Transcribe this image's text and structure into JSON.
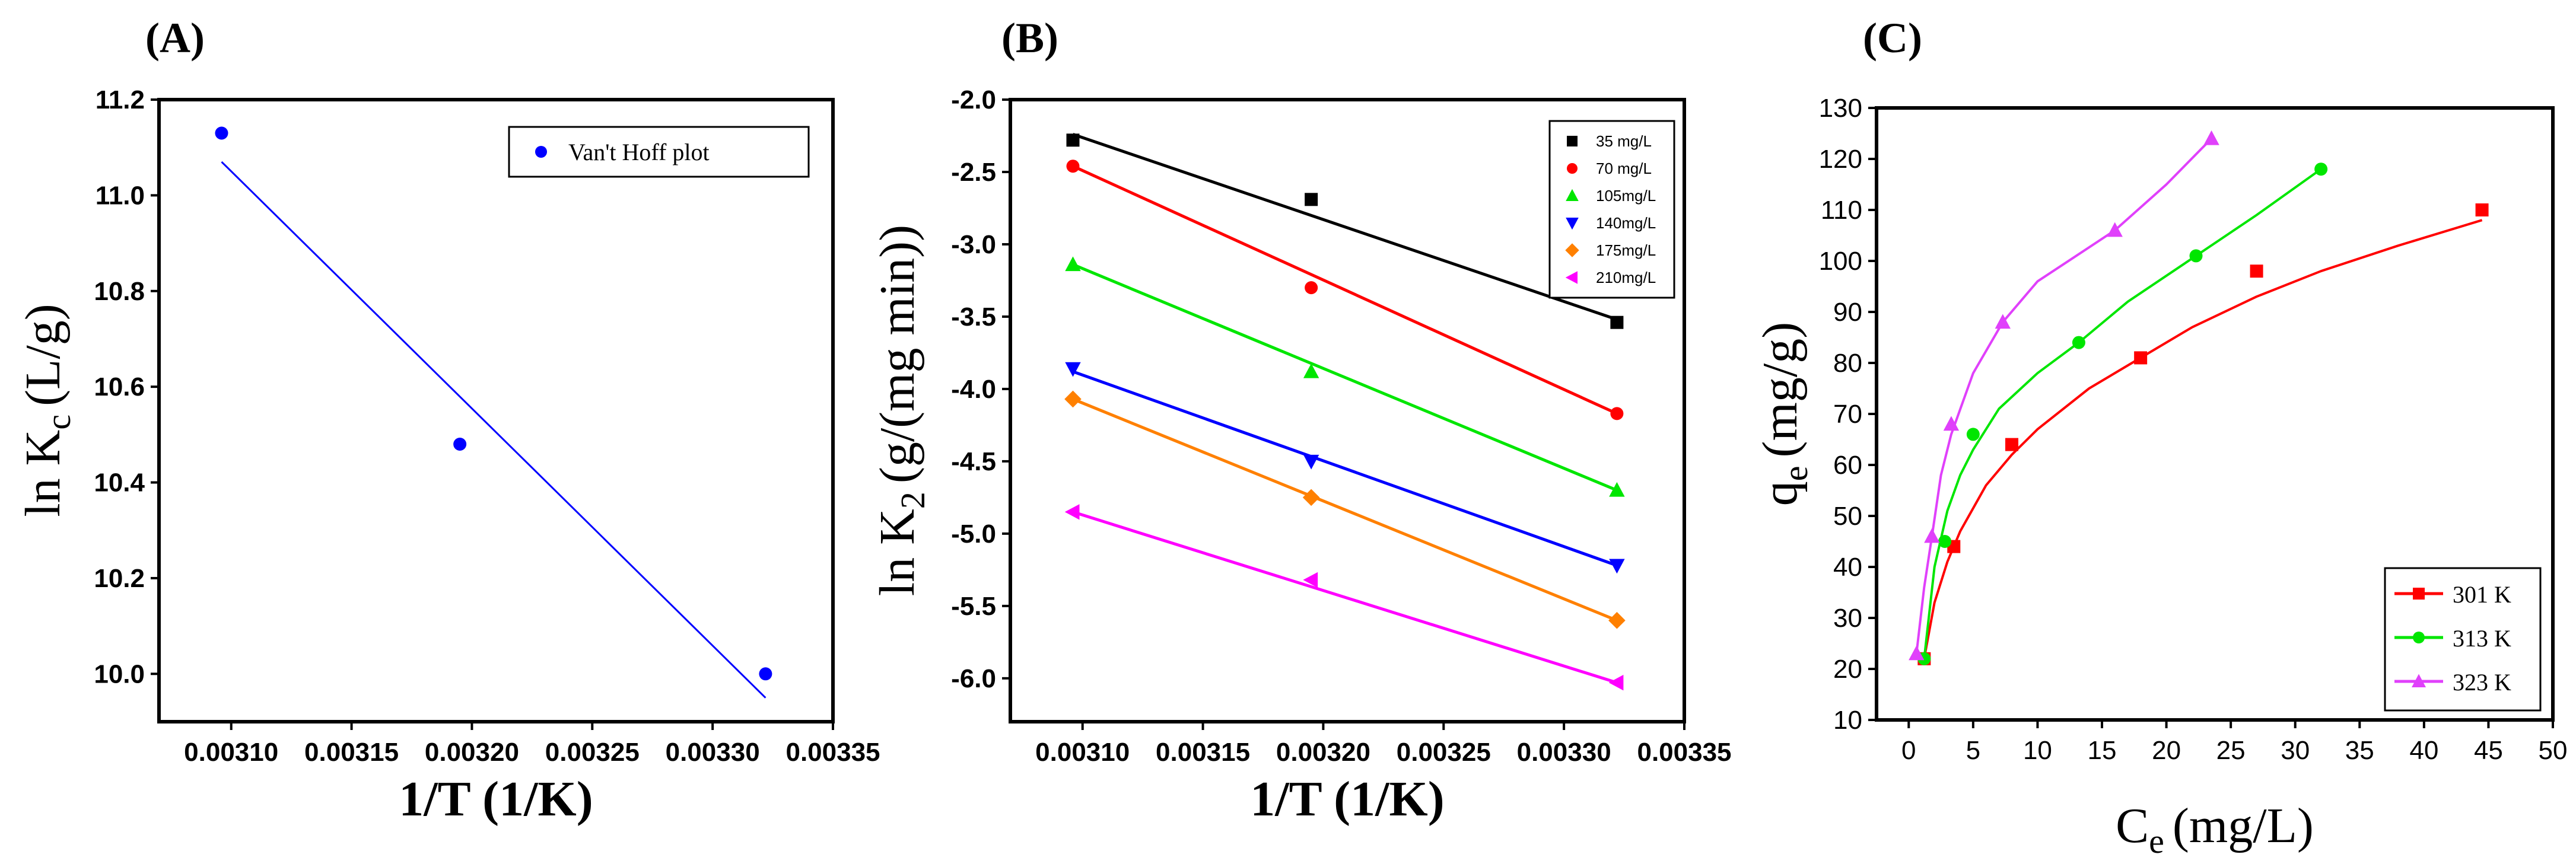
{
  "chart_data": [
    {
      "panel": "(A)",
      "type": "scatter",
      "xlabel": "1/T (1/K)",
      "ylabel_main": "ln K",
      "ylabel_sub": "c",
      "ylabel_unit": "(L/g)",
      "xlim": [
        0.00307,
        0.00335
      ],
      "ylim": [
        9.9,
        11.2
      ],
      "xticks": [
        "0.00310",
        "0.00315",
        "0.00320",
        "0.00325",
        "0.00330",
        "0.00335"
      ],
      "xtick_values": [
        0.0031,
        0.00315,
        0.0032,
        0.00325,
        0.0033,
        0.00335
      ],
      "yticks": [
        "10.0",
        "10.2",
        "10.4",
        "10.6",
        "10.8",
        "11.0",
        "11.2"
      ],
      "ytick_values": [
        10.0,
        10.2,
        10.4,
        10.6,
        10.8,
        11.0,
        11.2
      ],
      "series": [
        {
          "name": "Van't Hoff plot",
          "color": "#0000ff",
          "marker": "circle",
          "x": [
            0.003096,
            0.003195,
            0.003322
          ],
          "y": [
            11.13,
            10.48,
            10.0
          ],
          "fit": {
            "x": [
              0.003096,
              0.003322
            ],
            "y": [
              11.07,
              9.95
            ]
          }
        }
      ]
    },
    {
      "panel": "(B)",
      "type": "scatter",
      "xlabel": "1/T (1/K)",
      "ylabel_main": "ln K",
      "ylabel_sub": "2",
      "ylabel_unit": "(g/(mg min))",
      "xlim": [
        0.00307,
        0.00335
      ],
      "ylim": [
        -6.3,
        -2.0
      ],
      "xticks": [
        "0.00310",
        "0.00315",
        "0.00320",
        "0.00325",
        "0.00330",
        "0.00335"
      ],
      "xtick_values": [
        0.0031,
        0.00315,
        0.0032,
        0.00325,
        0.0033,
        0.00335
      ],
      "yticks": [
        "-2.0",
        "-2.5",
        "-3.0",
        "-3.5",
        "-4.0",
        "-4.5",
        "-5.0",
        "-5.5",
        "-6.0"
      ],
      "ytick_values": [
        -2.0,
        -2.5,
        -3.0,
        -3.5,
        -4.0,
        -4.5,
        -5.0,
        -5.5,
        -6.0
      ],
      "series": [
        {
          "name": "35 mg/L",
          "color": "#000000",
          "marker": "square",
          "x": [
            0.003096,
            0.003195,
            0.003322
          ],
          "y": [
            -2.28,
            -2.69,
            -3.54
          ],
          "fit": {
            "x": [
              0.003096,
              0.003322
            ],
            "y": [
              -2.24,
              -3.52
            ]
          }
        },
        {
          "name": "70 mg/L",
          "color": "#ff0000",
          "marker": "circle",
          "x": [
            0.003096,
            0.003195,
            0.003322
          ],
          "y": [
            -2.46,
            -3.3,
            -4.17
          ],
          "fit": {
            "x": [
              0.003096,
              0.003322
            ],
            "y": [
              -2.46,
              -4.17
            ]
          }
        },
        {
          "name": "105mg/L",
          "color": "#00e600",
          "marker": "triangle-up",
          "x": [
            0.003096,
            0.003195,
            0.003322
          ],
          "y": [
            -3.14,
            -3.88,
            -4.7
          ],
          "fit": {
            "x": [
              0.003096,
              0.003322
            ],
            "y": [
              -3.14,
              -4.7
            ]
          }
        },
        {
          "name": "140mg/L",
          "color": "#0000ff",
          "marker": "triangle-down",
          "x": [
            0.003096,
            0.003195,
            0.003322
          ],
          "y": [
            -3.86,
            -4.5,
            -5.22
          ],
          "fit": {
            "x": [
              0.003096,
              0.003322
            ],
            "y": [
              -3.88,
              -5.22
            ]
          }
        },
        {
          "name": "175mg/L",
          "color": "#ff8000",
          "marker": "diamond",
          "x": [
            0.003096,
            0.003195,
            0.003322
          ],
          "y": [
            -4.07,
            -4.75,
            -5.6
          ],
          "fit": {
            "x": [
              0.003096,
              0.003322
            ],
            "y": [
              -4.07,
              -5.6
            ]
          }
        },
        {
          "name": "210mg/L",
          "color": "#ff00ff",
          "marker": "triangle-left",
          "x": [
            0.003096,
            0.003195,
            0.003322
          ],
          "y": [
            -4.85,
            -5.32,
            -6.03
          ],
          "fit": {
            "x": [
              0.003096,
              0.003322
            ],
            "y": [
              -4.85,
              -6.03
            ]
          }
        }
      ]
    },
    {
      "panel": "(C)",
      "type": "scatter",
      "xlabel_main": "C",
      "xlabel_sub": "e",
      "xlabel_unit": "(mg/L)",
      "ylabel_main": "q",
      "ylabel_sub": "e",
      "ylabel_unit": "(mg/g)",
      "xlim": [
        -2.5,
        50
      ],
      "ylim": [
        10,
        130
      ],
      "xticks": [
        "0",
        "5",
        "10",
        "15",
        "20",
        "25",
        "30",
        "35",
        "40",
        "45",
        "50"
      ],
      "xtick_values": [
        0,
        5,
        10,
        15,
        20,
        25,
        30,
        35,
        40,
        45,
        50
      ],
      "yticks": [
        "10",
        "20",
        "30",
        "40",
        "50",
        "60",
        "70",
        "80",
        "90",
        "100",
        "110",
        "120",
        "130"
      ],
      "ytick_values": [
        10,
        20,
        30,
        40,
        50,
        60,
        70,
        80,
        90,
        100,
        110,
        120,
        130
      ],
      "series": [
        {
          "name": "301 K",
          "color": "#ff0000",
          "marker": "square",
          "x": [
            1.2,
            3.5,
            8.0,
            18.0,
            27.0,
            44.5
          ],
          "y": [
            22,
            44,
            64,
            81,
            98,
            110
          ],
          "fit": {
            "x": [
              1.2,
              2,
              3,
              4,
              6,
              8,
              10,
              14,
              18,
              22,
              27,
              32,
              38,
              44.5
            ],
            "y": [
              22,
              33,
              41,
              47,
              56,
              62,
              67,
              75,
              81,
              87,
              93,
              98,
              103,
              108
            ]
          }
        },
        {
          "name": "313 K",
          "color": "#00e600",
          "marker": "circle",
          "x": [
            1.2,
            2.8,
            5.0,
            13.2,
            22.3,
            32.0
          ],
          "y": [
            22,
            45,
            66,
            84,
            101,
            118
          ],
          "fit": {
            "x": [
              1.2,
              2,
              3,
              4,
              5,
              7,
              10,
              13.2,
              17,
              22.3,
              27,
              32
            ],
            "y": [
              22,
              40,
              51,
              58,
              63,
              71,
              78,
              84,
              92,
              101,
              109,
              118
            ]
          }
        },
        {
          "name": "323 K",
          "color": "#e040fb",
          "marker": "triangle-up",
          "x": [
            0.6,
            1.8,
            3.3,
            7.3,
            16.0,
            23.5
          ],
          "y": [
            23,
            46,
            68,
            88,
            106,
            124
          ],
          "fit": {
            "x": [
              0.6,
              1.2,
              1.8,
              2.5,
              3.3,
              5,
              7.3,
              10,
              13,
              16,
              20,
              23.5
            ],
            "y": [
              23,
              36,
              46,
              58,
              66,
              78,
              88,
              96,
              101,
              106,
              115,
              124
            ]
          }
        }
      ]
    }
  ]
}
